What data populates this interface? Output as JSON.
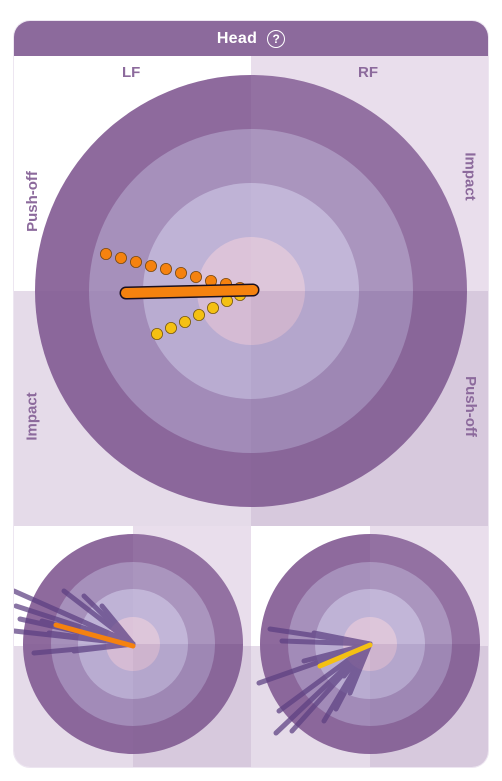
{
  "header": {
    "title": "Head",
    "help_icon": "question-circle-icon",
    "help_label": "?"
  },
  "labels": {
    "lf": "LF",
    "rf": "RF",
    "left_top": "Push-off",
    "left_bottom": "Impact",
    "right_top": "Impact",
    "right_bottom": "Push-off"
  },
  "colors": {
    "accent": "#8c6a9c",
    "ring_outer": "#8e6a9d",
    "ring_2": "#a690bb",
    "ring_3": "#bfb3d6",
    "center": "#dcc3d9",
    "orange": "#f5820f",
    "yellow": "#f4c013",
    "spoke": "#5c3f82"
  }
}
